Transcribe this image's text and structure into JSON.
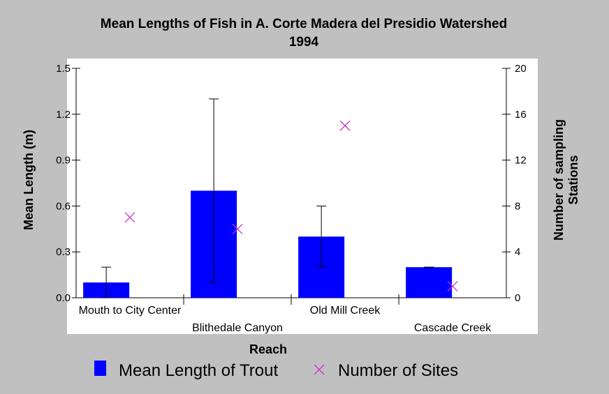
{
  "chart_data": {
    "type": "bar",
    "title": "Mean Lengths of Fish in A. Corte Madera del Presidio Watershed",
    "subtitle": "1994",
    "xlabel": "Reach",
    "ylabel": "Mean Length (m)",
    "y2label": [
      "Number of sampling",
      "Stations"
    ],
    "ylim": [
      0,
      1.5
    ],
    "y2lim": [
      0,
      20
    ],
    "yticks": [
      "0.0",
      "0.3",
      "0.6",
      "0.9",
      "1.2",
      "1.5"
    ],
    "y2ticks": [
      "0",
      "4",
      "8",
      "12",
      "16",
      "20"
    ],
    "categories": [
      "Mouth to City Center",
      "Blithedale Canyon",
      "Old Mill Creek",
      "Cascade Creek"
    ],
    "series": [
      {
        "name": "Mean Length of Trout",
        "type": "bar",
        "axis": "left",
        "values": [
          0.1,
          0.7,
          0.4,
          0.2
        ],
        "error_low": [
          0.0,
          0.1,
          0.2,
          0.2
        ],
        "error_high": [
          0.2,
          1.3,
          0.6,
          0.2
        ],
        "color": "#0000ff"
      },
      {
        "name": "Number of Sites",
        "type": "scatter",
        "axis": "right",
        "values": [
          7,
          6,
          15,
          1
        ],
        "marker": "x",
        "color": "#cc33cc"
      }
    ],
    "legend": "bottom",
    "grid": false
  }
}
